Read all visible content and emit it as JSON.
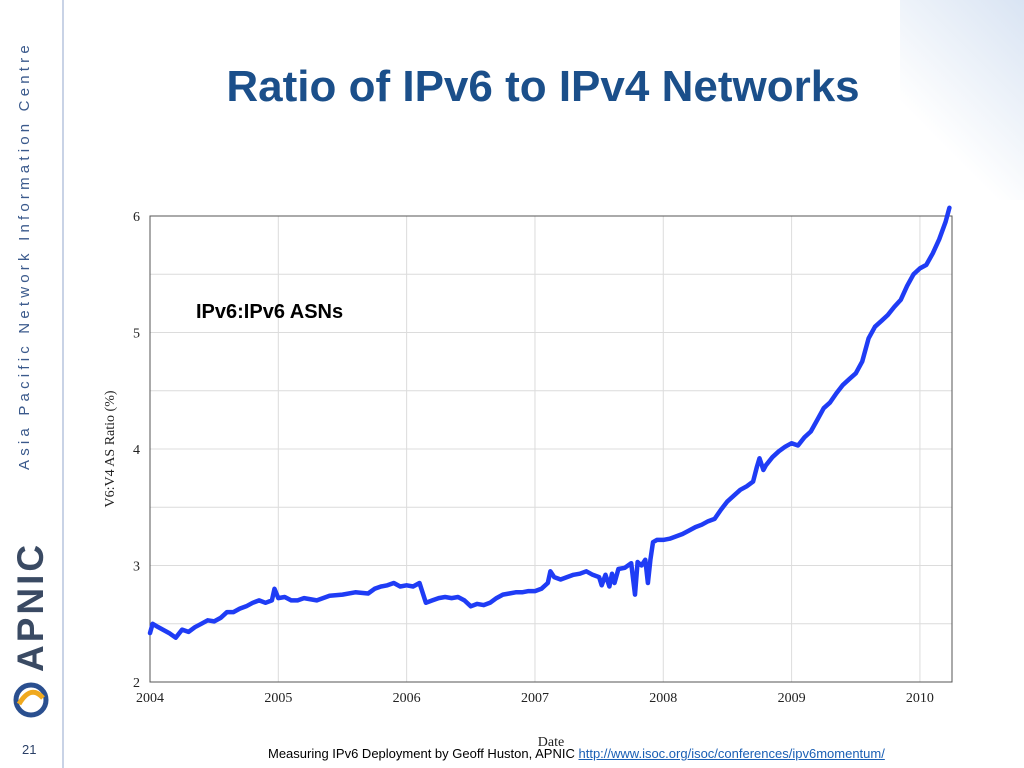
{
  "slide": {
    "title": "Ratio of IPv6 to IPv4 Networks",
    "sidebar_org": "Asia Pacific Network Information Centre",
    "sidebar_brand": "APNIC",
    "page_number": "21",
    "caption_text": "Measuring IPv6 Deployment by Geoff Huston, APNIC",
    "caption_link": "http://www.isoc.org/isoc/conferences/ipv6momentum/",
    "colors": {
      "title": "#1b4f8a",
      "series": "#1f3cf5",
      "sidebar_text": "#3b5a8c",
      "link": "#1a5fb4"
    }
  },
  "chart_data": {
    "type": "line",
    "annotation": "IPv6:IPv6 ASNs",
    "xlabel": "Date",
    "ylabel": "V6:V4 AS Ratio (%)",
    "xlim": [
      2004,
      2010.25
    ],
    "ylim": [
      2,
      6
    ],
    "x_ticks": [
      "2004",
      "2005",
      "2006",
      "2007",
      "2008",
      "2009",
      "2010"
    ],
    "y_ticks": [
      "2",
      "3",
      "4",
      "5",
      "6"
    ],
    "grid": true,
    "series": [
      {
        "points": [
          [
            2004.0,
            2.42
          ],
          [
            2004.02,
            2.5
          ],
          [
            2004.05,
            2.48
          ],
          [
            2004.1,
            2.45
          ],
          [
            2004.15,
            2.42
          ],
          [
            2004.2,
            2.38
          ],
          [
            2004.25,
            2.45
          ],
          [
            2004.3,
            2.43
          ],
          [
            2004.35,
            2.47
          ],
          [
            2004.4,
            2.5
          ],
          [
            2004.45,
            2.53
          ],
          [
            2004.5,
            2.52
          ],
          [
            2004.55,
            2.55
          ],
          [
            2004.6,
            2.6
          ],
          [
            2004.65,
            2.6
          ],
          [
            2004.7,
            2.63
          ],
          [
            2004.75,
            2.65
          ],
          [
            2004.8,
            2.68
          ],
          [
            2004.85,
            2.7
          ],
          [
            2004.9,
            2.68
          ],
          [
            2004.95,
            2.7
          ],
          [
            2004.97,
            2.8
          ],
          [
            2005.0,
            2.72
          ],
          [
            2005.05,
            2.73
          ],
          [
            2005.1,
            2.7
          ],
          [
            2005.15,
            2.7
          ],
          [
            2005.2,
            2.72
          ],
          [
            2005.3,
            2.7
          ],
          [
            2005.4,
            2.74
          ],
          [
            2005.5,
            2.75
          ],
          [
            2005.6,
            2.77
          ],
          [
            2005.7,
            2.76
          ],
          [
            2005.75,
            2.8
          ],
          [
            2005.8,
            2.82
          ],
          [
            2005.85,
            2.83
          ],
          [
            2005.9,
            2.85
          ],
          [
            2005.95,
            2.82
          ],
          [
            2006.0,
            2.83
          ],
          [
            2006.05,
            2.82
          ],
          [
            2006.1,
            2.85
          ],
          [
            2006.15,
            2.68
          ],
          [
            2006.2,
            2.7
          ],
          [
            2006.25,
            2.72
          ],
          [
            2006.3,
            2.73
          ],
          [
            2006.35,
            2.72
          ],
          [
            2006.4,
            2.73
          ],
          [
            2006.45,
            2.7
          ],
          [
            2006.5,
            2.65
          ],
          [
            2006.55,
            2.67
          ],
          [
            2006.6,
            2.66
          ],
          [
            2006.65,
            2.68
          ],
          [
            2006.7,
            2.72
          ],
          [
            2006.75,
            2.75
          ],
          [
            2006.8,
            2.76
          ],
          [
            2006.85,
            2.77
          ],
          [
            2006.9,
            2.77
          ],
          [
            2006.95,
            2.78
          ],
          [
            2007.0,
            2.78
          ],
          [
            2007.05,
            2.8
          ],
          [
            2007.1,
            2.85
          ],
          [
            2007.12,
            2.95
          ],
          [
            2007.15,
            2.9
          ],
          [
            2007.2,
            2.88
          ],
          [
            2007.25,
            2.9
          ],
          [
            2007.3,
            2.92
          ],
          [
            2007.35,
            2.93
          ],
          [
            2007.4,
            2.95
          ],
          [
            2007.45,
            2.92
          ],
          [
            2007.5,
            2.9
          ],
          [
            2007.52,
            2.83
          ],
          [
            2007.55,
            2.92
          ],
          [
            2007.58,
            2.82
          ],
          [
            2007.6,
            2.93
          ],
          [
            2007.62,
            2.85
          ],
          [
            2007.65,
            2.97
          ],
          [
            2007.7,
            2.98
          ],
          [
            2007.75,
            3.02
          ],
          [
            2007.78,
            2.75
          ],
          [
            2007.8,
            3.03
          ],
          [
            2007.83,
            3.0
          ],
          [
            2007.86,
            3.05
          ],
          [
            2007.88,
            2.85
          ],
          [
            2007.9,
            3.05
          ],
          [
            2007.92,
            3.2
          ],
          [
            2007.95,
            3.22
          ],
          [
            2008.0,
            3.22
          ],
          [
            2008.05,
            3.23
          ],
          [
            2008.1,
            3.25
          ],
          [
            2008.15,
            3.27
          ],
          [
            2008.2,
            3.3
          ],
          [
            2008.25,
            3.33
          ],
          [
            2008.3,
            3.35
          ],
          [
            2008.35,
            3.38
          ],
          [
            2008.4,
            3.4
          ],
          [
            2008.45,
            3.48
          ],
          [
            2008.5,
            3.55
          ],
          [
            2008.55,
            3.6
          ],
          [
            2008.6,
            3.65
          ],
          [
            2008.65,
            3.68
          ],
          [
            2008.7,
            3.72
          ],
          [
            2008.73,
            3.85
          ],
          [
            2008.75,
            3.92
          ],
          [
            2008.78,
            3.82
          ],
          [
            2008.8,
            3.86
          ],
          [
            2008.85,
            3.93
          ],
          [
            2008.9,
            3.98
          ],
          [
            2008.95,
            4.02
          ],
          [
            2009.0,
            4.05
          ],
          [
            2009.05,
            4.03
          ],
          [
            2009.1,
            4.1
          ],
          [
            2009.15,
            4.15
          ],
          [
            2009.2,
            4.25
          ],
          [
            2009.25,
            4.35
          ],
          [
            2009.3,
            4.4
          ],
          [
            2009.35,
            4.48
          ],
          [
            2009.4,
            4.55
          ],
          [
            2009.45,
            4.6
          ],
          [
            2009.5,
            4.65
          ],
          [
            2009.55,
            4.75
          ],
          [
            2009.6,
            4.95
          ],
          [
            2009.65,
            5.05
          ],
          [
            2009.7,
            5.1
          ],
          [
            2009.75,
            5.15
          ],
          [
            2009.8,
            5.22
          ],
          [
            2009.85,
            5.28
          ],
          [
            2009.9,
            5.4
          ],
          [
            2009.95,
            5.5
          ],
          [
            2010.0,
            5.55
          ],
          [
            2010.05,
            5.58
          ],
          [
            2010.1,
            5.68
          ],
          [
            2010.15,
            5.8
          ],
          [
            2010.2,
            5.95
          ],
          [
            2010.23,
            6.07
          ]
        ]
      }
    ]
  }
}
